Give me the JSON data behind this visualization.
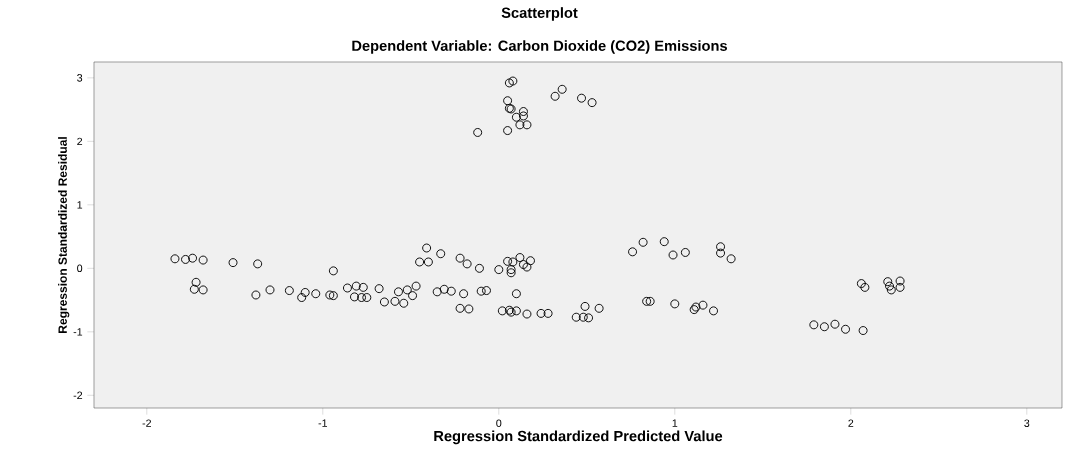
{
  "chart_data": {
    "type": "scatter",
    "title": "Scatterplot",
    "subtitle": "Dependent Variable: Carbon Dioxide (CO2) Emissions",
    "xlabel": "Regression Standardized Predicted Value",
    "ylabel": "Regression Standardized Residual",
    "xlim": [
      -2.3,
      3.2
    ],
    "ylim": [
      -2.2,
      3.25
    ],
    "xticks": [
      -2,
      -1,
      0,
      1,
      2,
      3
    ],
    "yticks": [
      -2,
      -1,
      0,
      1,
      2,
      3
    ],
    "grid": false,
    "marker": "circle",
    "series": [
      {
        "color": "#000000",
        "x": [
          -1.84,
          -1.78,
          -1.74,
          -1.68,
          -1.51,
          -1.37,
          -1.72,
          -1.73,
          -1.68,
          -0.94,
          -1.38,
          -1.3,
          -1.19,
          -1.12,
          -1.1,
          -1.04,
          -0.96,
          -0.94,
          -0.86,
          -0.81,
          -0.77,
          -0.82,
          -0.78,
          -0.75,
          -0.68,
          -0.65,
          -0.59,
          -0.54,
          -0.57,
          -0.52,
          -0.47,
          -0.49,
          -0.41,
          -0.33,
          -0.45,
          -0.4,
          -0.22,
          -0.18,
          -0.11,
          0.0,
          0.05,
          0.08,
          0.12,
          0.18,
          0.14,
          0.16,
          0.07,
          0.07,
          0.06,
          0.08,
          0.05,
          0.06,
          0.07,
          0.14,
          0.1,
          0.14,
          0.12,
          0.16,
          -0.12,
          0.05,
          0.32,
          0.36,
          0.47,
          0.53,
          0.76,
          0.82,
          0.94,
          0.99,
          1.06,
          1.26,
          1.26,
          1.32,
          -0.35,
          -0.31,
          -0.27,
          -0.2,
          -0.1,
          -0.07,
          0.1,
          -0.22,
          -0.17,
          0.02,
          0.06,
          0.07,
          0.1,
          0.16,
          0.24,
          0.28,
          0.44,
          0.48,
          0.51,
          0.49,
          0.57,
          0.84,
          0.86,
          1.0,
          1.11,
          1.16,
          1.22,
          1.12,
          2.06,
          2.08,
          2.21,
          2.28,
          2.22,
          2.28,
          2.23,
          1.79,
          1.85,
          1.91,
          1.97,
          2.07
        ],
        "values": [
          0.15,
          0.14,
          0.16,
          0.13,
          0.09,
          0.07,
          -0.22,
          -0.33,
          -0.34,
          -0.04,
          -0.42,
          -0.34,
          -0.35,
          -0.46,
          -0.38,
          -0.4,
          -0.42,
          -0.43,
          -0.31,
          -0.28,
          -0.3,
          -0.45,
          -0.46,
          -0.46,
          -0.32,
          -0.53,
          -0.52,
          -0.55,
          -0.37,
          -0.34,
          -0.28,
          -0.43,
          0.32,
          0.23,
          0.1,
          0.1,
          0.16,
          0.07,
          0.0,
          -0.02,
          0.11,
          0.1,
          0.17,
          0.12,
          0.06,
          0.02,
          -0.02,
          -0.07,
          2.92,
          2.95,
          2.64,
          2.52,
          2.51,
          2.47,
          2.38,
          2.4,
          2.26,
          2.26,
          2.14,
          2.17,
          2.71,
          2.82,
          2.68,
          2.61,
          0.26,
          0.41,
          0.42,
          0.21,
          0.25,
          0.34,
          0.24,
          0.15,
          -0.37,
          -0.33,
          -0.36,
          -0.4,
          -0.36,
          -0.35,
          -0.4,
          -0.63,
          -0.64,
          -0.67,
          -0.66,
          -0.69,
          -0.67,
          -0.72,
          -0.71,
          -0.71,
          -0.77,
          -0.77,
          -0.78,
          -0.6,
          -0.63,
          -0.52,
          -0.52,
          -0.56,
          -0.65,
          -0.58,
          -0.67,
          -0.61,
          -0.24,
          -0.3,
          -0.21,
          -0.2,
          -0.28,
          -0.3,
          -0.34,
          -0.89,
          -0.92,
          -0.88,
          -0.96,
          -0.98
        ]
      }
    ]
  }
}
